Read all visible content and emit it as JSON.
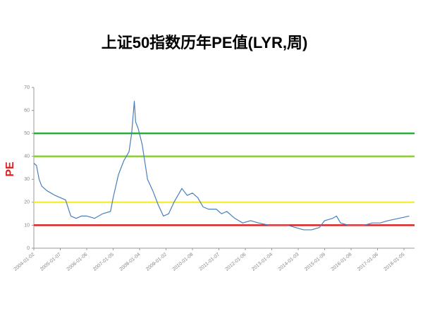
{
  "chart_data": {
    "type": "line",
    "title": "上证50指数历年PE值(LYR,周)",
    "y_label": "PE",
    "x": [
      2004.0,
      2004.1,
      2004.2,
      2004.3,
      2004.5,
      2004.8,
      2005.0,
      2005.2,
      2005.4,
      2005.6,
      2005.8,
      2006.0,
      2006.3,
      2006.6,
      2006.9,
      2007.0,
      2007.2,
      2007.4,
      2007.5,
      2007.6,
      2007.7,
      2007.8,
      2007.85,
      2007.95,
      2008.1,
      2008.3,
      2008.5,
      2008.7,
      2008.9,
      2009.1,
      2009.3,
      2009.5,
      2009.6,
      2009.8,
      2010.0,
      2010.2,
      2010.4,
      2010.6,
      2010.9,
      2011.1,
      2011.3,
      2011.6,
      2011.9,
      2012.2,
      2012.5,
      2012.9,
      2013.1,
      2013.4,
      2013.6,
      2013.9,
      2014.2,
      2014.5,
      2014.8,
      2015.0,
      2015.3,
      2015.45,
      2015.6,
      2015.9,
      2016.2,
      2016.5,
      2016.8,
      2017.1,
      2017.4,
      2017.8,
      2018.2
    ],
    "series": [
      {
        "color": "#4a7ebb",
        "values": [
          37,
          36,
          30,
          27,
          25,
          23,
          22,
          21,
          14,
          13,
          14,
          14,
          13,
          15,
          16,
          22,
          32,
          38,
          40,
          42,
          50,
          64,
          55,
          52,
          45,
          30,
          25,
          19,
          14,
          15,
          20,
          24,
          26,
          23,
          24,
          22,
          18,
          17,
          17,
          15,
          16,
          13,
          11,
          12,
          11,
          10,
          10,
          10,
          10,
          9,
          8,
          8,
          9,
          12,
          13,
          14,
          11,
          10,
          10,
          10,
          11,
          11,
          12,
          13,
          14
        ]
      }
    ],
    "reference_lines": [
      {
        "value": 50,
        "color": "#2eaa3c"
      },
      {
        "value": 40,
        "color": "#8ccf3a"
      },
      {
        "value": 20,
        "color": "#f5f032"
      },
      {
        "value": 10,
        "color": "#dd2222"
      }
    ],
    "xlim": [
      2004.0,
      2018.4
    ],
    "xticks": [
      {
        "value": 2004.0,
        "label": "2004-01-02"
      },
      {
        "value": 2005.0,
        "label": "2005-01-07"
      },
      {
        "value": 2006.0,
        "label": "2006-01-06"
      },
      {
        "value": 2007.0,
        "label": "2007-01-05"
      },
      {
        "value": 2008.0,
        "label": "2008-01-04"
      },
      {
        "value": 2009.0,
        "label": "2009-01-02"
      },
      {
        "value": 2010.0,
        "label": "2010-01-08"
      },
      {
        "value": 2011.0,
        "label": "2011-01-07"
      },
      {
        "value": 2012.0,
        "label": "2012-01-06"
      },
      {
        "value": 2013.0,
        "label": "2013-01-04"
      },
      {
        "value": 2014.0,
        "label": "2014-01-03"
      },
      {
        "value": 2015.0,
        "label": "2015-01-09"
      },
      {
        "value": 2016.0,
        "label": "2016-01-08"
      },
      {
        "value": 2017.0,
        "label": "2017-01-06"
      },
      {
        "value": 2018.0,
        "label": "2018-01-05"
      }
    ],
    "ylim": [
      0,
      70
    ],
    "yticks": [
      0,
      10,
      20,
      30,
      40,
      50,
      60,
      70
    ]
  }
}
